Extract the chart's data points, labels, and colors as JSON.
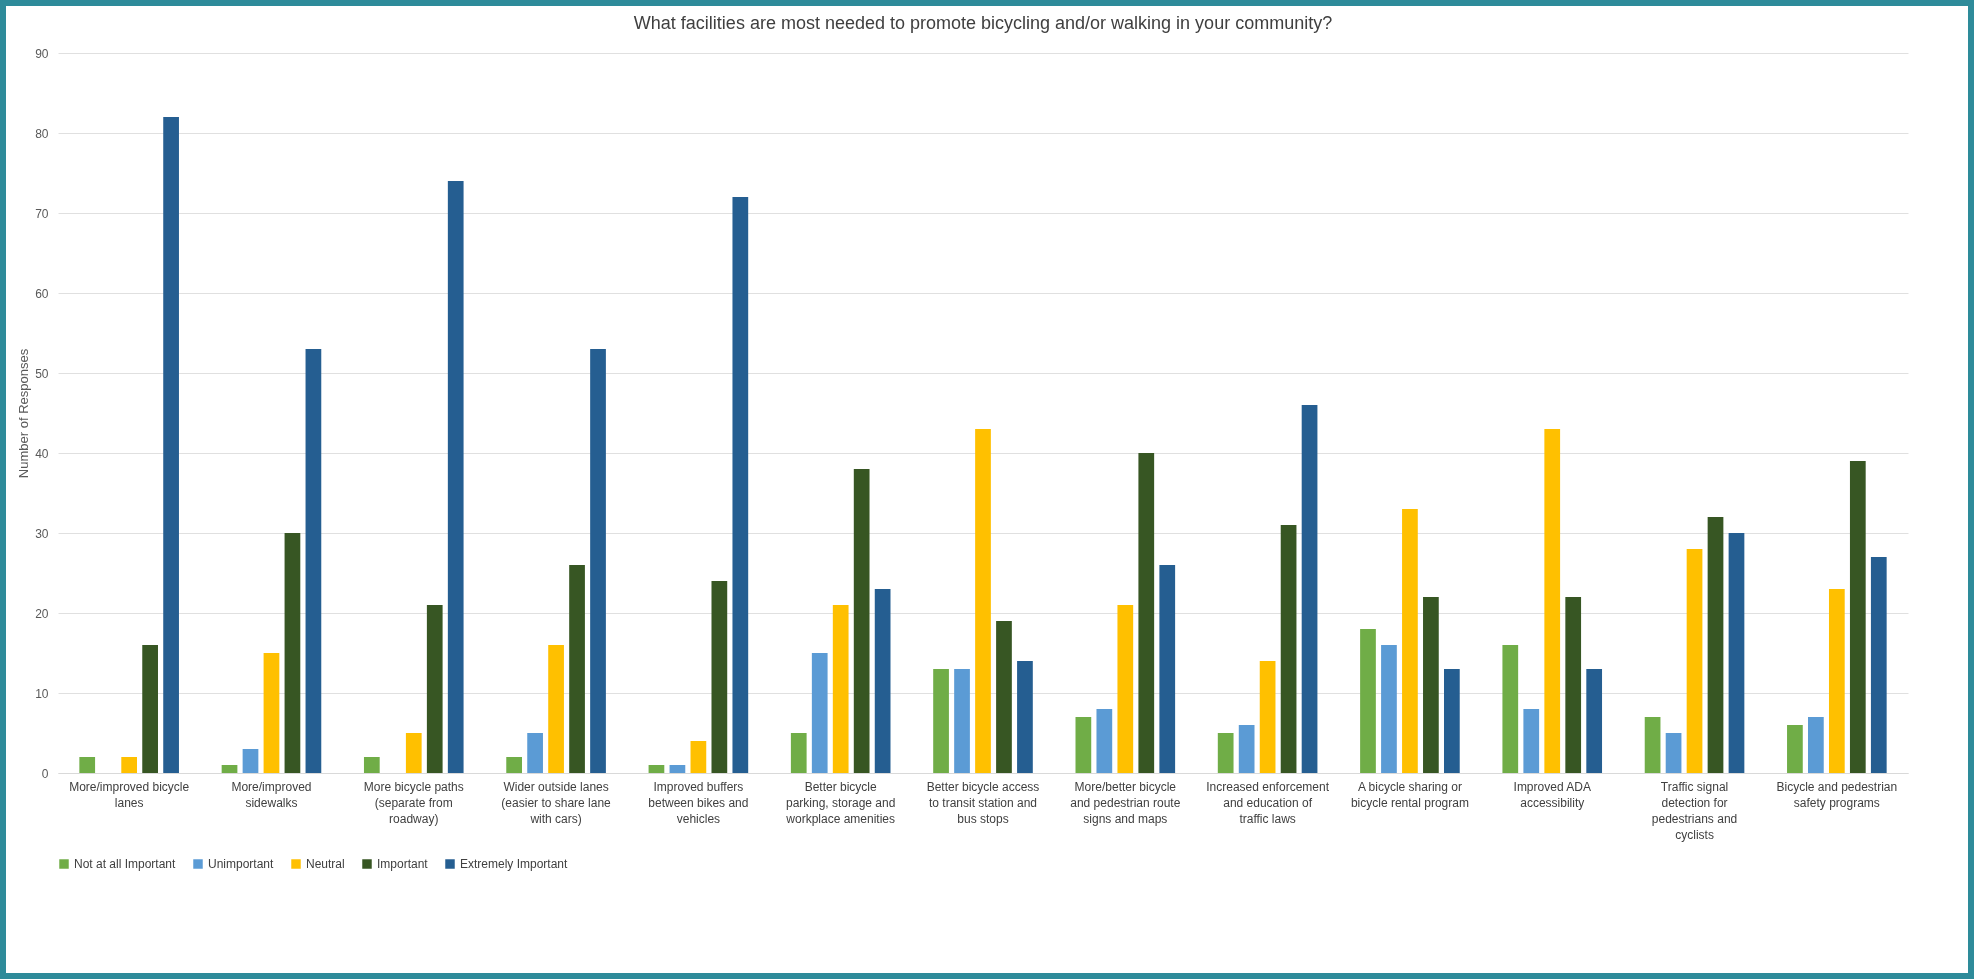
{
  "chart_data": {
    "type": "bar",
    "title": "What facilities are most needed to promote bicycling and/or walking in your community?",
    "ylabel": "Number of Responses",
    "categories": [
      "More/improved bicycle lanes",
      "More/improved sidewalks",
      "More bicycle paths (separate from roadway)",
      "Wider outside lanes (easier to share lane with cars)",
      "Improved buffers between bikes and vehicles",
      "Better bicycle parking, storage and workplace amenities",
      "Better bicycle access to transit station and bus stops",
      "More/better bicycle and pedestrian route signs and maps",
      "Increased enforcement and education of traffic laws",
      "A bicycle sharing or bicycle rental program",
      "Improved ADA accessibility",
      "Traffic signal detection for pedestrians and cyclists",
      "Bicycle and pedestrian safety programs"
    ],
    "series": [
      {
        "name": "Not at all Important",
        "color": "#70ad47",
        "values": [
          2,
          1,
          2,
          2,
          1,
          5,
          13,
          7,
          5,
          18,
          16,
          7,
          6
        ]
      },
      {
        "name": "Unimportant",
        "color": "#5b9bd5",
        "values": [
          0,
          3,
          0,
          5,
          1,
          15,
          13,
          8,
          6,
          16,
          8,
          5,
          7
        ]
      },
      {
        "name": "Neutral",
        "color": "#ffc000",
        "values": [
          2,
          15,
          5,
          16,
          4,
          21,
          43,
          21,
          14,
          33,
          43,
          28,
          23
        ]
      },
      {
        "name": "Important",
        "color": "#375623",
        "values": [
          16,
          30,
          21,
          26,
          24,
          38,
          19,
          40,
          31,
          22,
          22,
          32,
          39
        ]
      },
      {
        "name": "Extremely Important",
        "color": "#255e91",
        "values": [
          82,
          53,
          74,
          53,
          72,
          23,
          14,
          26,
          46,
          13,
          13,
          30,
          27
        ]
      }
    ],
    "ylim": [
      0,
      90
    ],
    "yticks": [
      0,
      10,
      20,
      30,
      40,
      50,
      60,
      70,
      80,
      90
    ],
    "grid": "y",
    "legend": "bottom"
  }
}
